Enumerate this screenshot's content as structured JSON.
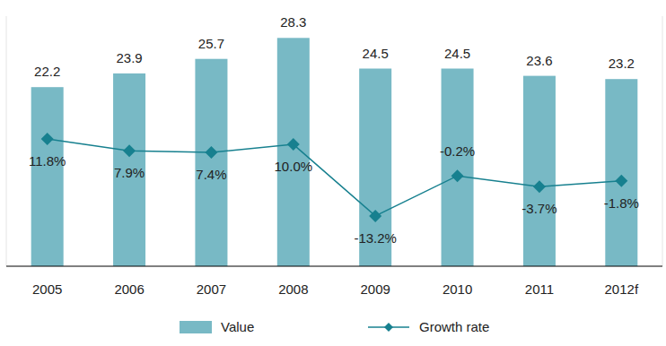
{
  "chart_data": {
    "type": "bar",
    "categories": [
      "2005",
      "2006",
      "2007",
      "2008",
      "2009",
      "2010",
      "2011",
      "2012f"
    ],
    "ylim": [
      0,
      31
    ],
    "y2lim": [
      -29.5,
      51.6
    ],
    "tick_labels": "x",
    "grid": false,
    "legend": "bottom",
    "data_labels": true,
    "series": [
      {
        "name": "Value",
        "type": "bar",
        "color": "#78b9c5",
        "values": [
          22.2,
          23.9,
          25.7,
          28.3,
          24.5,
          24.5,
          23.6,
          23.2
        ]
      },
      {
        "name": "Growth rate",
        "type": "line",
        "axis": "y2",
        "color": "#17808f",
        "marker": "diamond",
        "values": [
          11.8,
          7.9,
          7.4,
          10.0,
          -13.2,
          -0.2,
          -3.7,
          -1.8
        ],
        "value_labels": [
          "11.8%",
          "7.9%",
          "7.4%",
          "10.0%",
          "-13.2%",
          "-0.2%",
          "-3.7%",
          "-1.8%"
        ]
      }
    ]
  }
}
